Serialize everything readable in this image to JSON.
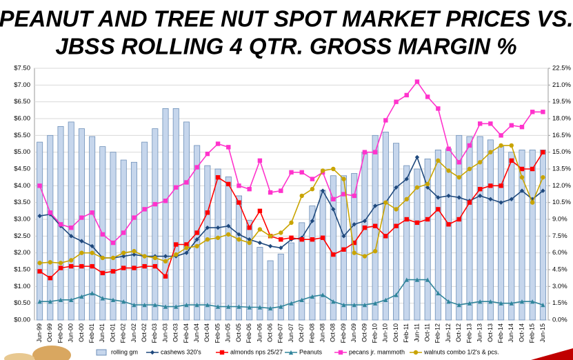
{
  "chart_data": {
    "type": "combo",
    "title": [
      "PEANUT AND TREE NUT SPOT MARKET PRICES VS.",
      "JBSS ROLLING 4 QTR. GROSS MARGIN %"
    ],
    "categories": [
      "Jun-99",
      "Oct-99",
      "Feb-00",
      "Jun-00",
      "Oct-00",
      "Feb-01",
      "Jun-01",
      "Oct-01",
      "Feb-02",
      "Jun-02",
      "Oct-02",
      "Feb-03",
      "Jun-03",
      "Oct-03",
      "Feb-04",
      "Jun-04",
      "Oct-04",
      "Feb-05",
      "Jun-05",
      "Oct-05",
      "Feb-06",
      "Jun-06",
      "Oct-06",
      "Feb-07",
      "Jun-07",
      "Oct-07",
      "Feb-08",
      "Jun-08",
      "Oct-08",
      "Feb-09",
      "Jun-09",
      "Oct-09",
      "Feb-10",
      "Jun-10",
      "Oct-10",
      "Feb-11",
      "Jun-11",
      "Oct-11",
      "Feb-12",
      "Jun-12",
      "Oct-12",
      "Feb-13",
      "Jun-13",
      "Oct-13",
      "Feb-14",
      "Jun-14",
      "Oct-14",
      "Feb-15",
      "Jun-15"
    ],
    "ylim": [
      0,
      7.5
    ],
    "yticks": [
      {
        "value": 0,
        "label": "$0.00"
      },
      {
        "value": 0.5,
        "label": "$0.50"
      },
      {
        "value": 1,
        "label": "$1.00"
      },
      {
        "value": 1.5,
        "label": "$1.50"
      },
      {
        "value": 2,
        "label": "$2.00"
      },
      {
        "value": 2.5,
        "label": "$2.50"
      },
      {
        "value": 3,
        "label": "$3.00"
      },
      {
        "value": 3.5,
        "label": "$3.50"
      },
      {
        "value": 4,
        "label": "$4.00"
      },
      {
        "value": 4.5,
        "label": "$4.50"
      },
      {
        "value": 5,
        "label": "$5.00"
      },
      {
        "value": 5.5,
        "label": "$5.50"
      },
      {
        "value": 6,
        "label": "$6.00"
      },
      {
        "value": 6.5,
        "label": "$6.50"
      },
      {
        "value": 7,
        "label": "$7.00"
      },
      {
        "value": 7.5,
        "label": "$7.50"
      }
    ],
    "y2lim": [
      0,
      22.5
    ],
    "y2ticks": [
      {
        "value": 0,
        "label": "0.0%"
      },
      {
        "value": 1.5,
        "label": "1.5%"
      },
      {
        "value": 3,
        "label": "3.0%"
      },
      {
        "value": 4.5,
        "label": "4.5%"
      },
      {
        "value": 6,
        "label": "6.0%"
      },
      {
        "value": 7.5,
        "label": "7.5%"
      },
      {
        "value": 9,
        "label": "9.0%"
      },
      {
        "value": 10.5,
        "label": "10.5%"
      },
      {
        "value": 12,
        "label": "12.0%"
      },
      {
        "value": 13.5,
        "label": "13.5%"
      },
      {
        "value": 15,
        "label": "15.0%"
      },
      {
        "value": 16.5,
        "label": "16.5%"
      },
      {
        "value": 18,
        "label": "18.0%"
      },
      {
        "value": 19.5,
        "label": "19.5%"
      },
      {
        "value": 21,
        "label": "21.0%"
      },
      {
        "value": 22.5,
        "label": "22.5%"
      }
    ],
    "grid": true,
    "legend": "bottom",
    "series": [
      {
        "name": "rolling gm",
        "type": "bar",
        "axis": "y2",
        "color": "#c6d6ec",
        "values": [
          15.9,
          16.5,
          17.3,
          17.7,
          17.1,
          16.4,
          15.5,
          15.0,
          14.3,
          14.1,
          15.9,
          17.1,
          18.9,
          18.9,
          17.7,
          15.6,
          13.8,
          13.5,
          12.8,
          11.1,
          8.9,
          6.5,
          5.3,
          5.9,
          6.9,
          8.7,
          10.2,
          11.6,
          12.9,
          12.9,
          13.1,
          15.0,
          16.5,
          16.8,
          15.8,
          13.8,
          13.5,
          14.4,
          15.2,
          15.3,
          16.5,
          16.4,
          16.4,
          16.1,
          15.5,
          15.0,
          15.2,
          15.2,
          15.2
        ]
      },
      {
        "name": "cashews 320's",
        "type": "line",
        "marker": "diamond",
        "color": "#1f497d",
        "values": [
          3.1,
          3.15,
          2.8,
          2.5,
          2.35,
          2.2,
          1.85,
          1.85,
          1.9,
          1.95,
          1.9,
          1.9,
          1.9,
          1.9,
          2.0,
          2.4,
          2.75,
          2.75,
          2.8,
          2.55,
          2.4,
          2.3,
          2.2,
          2.15,
          2.4,
          2.45,
          2.95,
          3.85,
          3.3,
          2.5,
          2.85,
          2.95,
          3.4,
          3.5,
          3.95,
          4.2,
          4.85,
          3.95,
          3.65,
          3.7,
          3.65,
          3.55,
          3.7,
          3.6,
          3.5,
          3.6,
          3.85,
          3.6,
          3.85
        ]
      },
      {
        "name": "almonds nps 25/27",
        "type": "line",
        "marker": "square",
        "color": "#ff0000",
        "values": [
          1.45,
          1.25,
          1.55,
          1.6,
          1.6,
          1.6,
          1.4,
          1.45,
          1.55,
          1.55,
          1.6,
          1.6,
          1.3,
          2.25,
          2.25,
          2.6,
          3.2,
          4.25,
          4.05,
          3.5,
          2.75,
          3.25,
          2.5,
          2.4,
          2.45,
          2.4,
          2.4,
          2.45,
          1.95,
          2.1,
          2.3,
          2.75,
          2.8,
          2.5,
          2.8,
          3.0,
          2.9,
          3.0,
          3.3,
          2.85,
          3.0,
          3.5,
          3.9,
          4.0,
          4.0,
          4.75,
          4.5,
          4.5,
          5.0
        ]
      },
      {
        "name": "Peanuts",
        "type": "line",
        "marker": "triangle",
        "color": "#31859c",
        "values": [
          0.55,
          0.55,
          0.6,
          0.6,
          0.7,
          0.8,
          0.65,
          0.6,
          0.55,
          0.45,
          0.45,
          0.45,
          0.4,
          0.4,
          0.45,
          0.45,
          0.45,
          0.4,
          0.4,
          0.4,
          0.38,
          0.38,
          0.35,
          0.4,
          0.5,
          0.6,
          0.7,
          0.75,
          0.55,
          0.45,
          0.45,
          0.45,
          0.5,
          0.6,
          0.75,
          1.2,
          1.2,
          1.2,
          0.8,
          0.55,
          0.45,
          0.5,
          0.55,
          0.55,
          0.5,
          0.5,
          0.55,
          0.55,
          0.45
        ]
      },
      {
        "name": "pecans jr. mammoth",
        "type": "line",
        "marker": "square",
        "color": "#ff33cc",
        "values": [
          4.0,
          3.2,
          2.85,
          2.75,
          3.05,
          3.2,
          2.55,
          2.3,
          2.6,
          3.05,
          3.3,
          3.45,
          3.55,
          3.95,
          4.1,
          4.55,
          4.95,
          5.25,
          5.15,
          4.0,
          3.9,
          4.75,
          3.8,
          3.85,
          4.4,
          4.4,
          4.2,
          4.4,
          3.6,
          3.75,
          3.7,
          5.0,
          5.0,
          5.95,
          6.5,
          6.7,
          7.1,
          6.65,
          6.3,
          5.1,
          4.7,
          5.2,
          5.85,
          5.85,
          5.5,
          5.8,
          5.75,
          6.2,
          6.2
        ]
      },
      {
        "name": "walnuts combo 1/2's & pcs.",
        "type": "line",
        "marker": "circle",
        "color": "#c9a400",
        "values": [
          1.7,
          1.72,
          1.7,
          1.78,
          2.0,
          2.0,
          1.85,
          1.85,
          2.0,
          2.05,
          1.9,
          1.85,
          1.75,
          1.95,
          2.15,
          2.2,
          2.4,
          2.45,
          2.55,
          2.4,
          2.3,
          2.7,
          2.5,
          2.6,
          2.9,
          3.7,
          3.9,
          4.45,
          4.5,
          4.2,
          2.0,
          1.9,
          2.05,
          3.5,
          3.3,
          3.6,
          3.95,
          4.05,
          4.75,
          4.45,
          4.25,
          4.5,
          4.7,
          5.0,
          5.2,
          5.2,
          4.25,
          3.5,
          4.25
        ]
      }
    ]
  }
}
